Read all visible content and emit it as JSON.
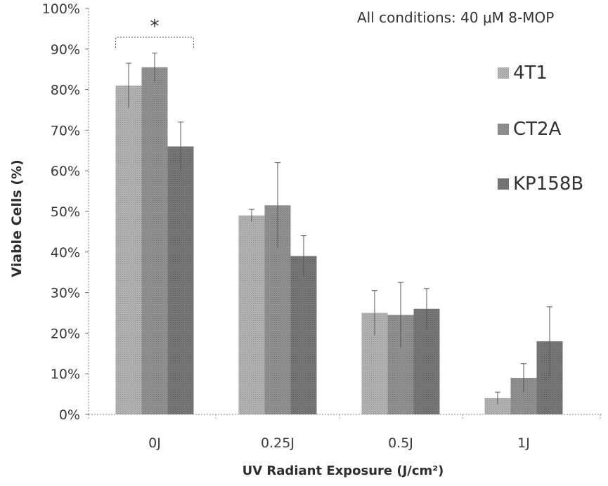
{
  "chart_data": {
    "type": "bar",
    "annotation": "All conditions: 40 μM 8-MOP",
    "xlabel": "UV Radiant Exposure (J/cm²)",
    "ylabel": "Viable Cells (%)",
    "ylim": [
      0,
      100
    ],
    "yticks": [
      "0%",
      "10%",
      "20%",
      "30%",
      "40%",
      "50%",
      "60%",
      "70%",
      "80%",
      "90%",
      "100%"
    ],
    "categories": [
      "0J",
      "0.25J",
      "0.5J",
      "1J"
    ],
    "series": [
      {
        "name": "4T1",
        "values": [
          81,
          49,
          25,
          4
        ],
        "errors": [
          5.5,
          1.5,
          5.5,
          1.5
        ],
        "color": "#a9a9a9"
      },
      {
        "name": "CT2A",
        "values": [
          85.5,
          51.5,
          24.5,
          9
        ],
        "errors": [
          3.5,
          10.5,
          8,
          3.5
        ],
        "color": "#8a8a8a"
      },
      {
        "name": "KP158B",
        "values": [
          66,
          39,
          26,
          18
        ],
        "errors": [
          6,
          5,
          5,
          8.5
        ],
        "color": "#6f6f6f"
      }
    ],
    "significance": {
      "label": "*",
      "category": "0J"
    },
    "grid": false,
    "legend": "right"
  }
}
